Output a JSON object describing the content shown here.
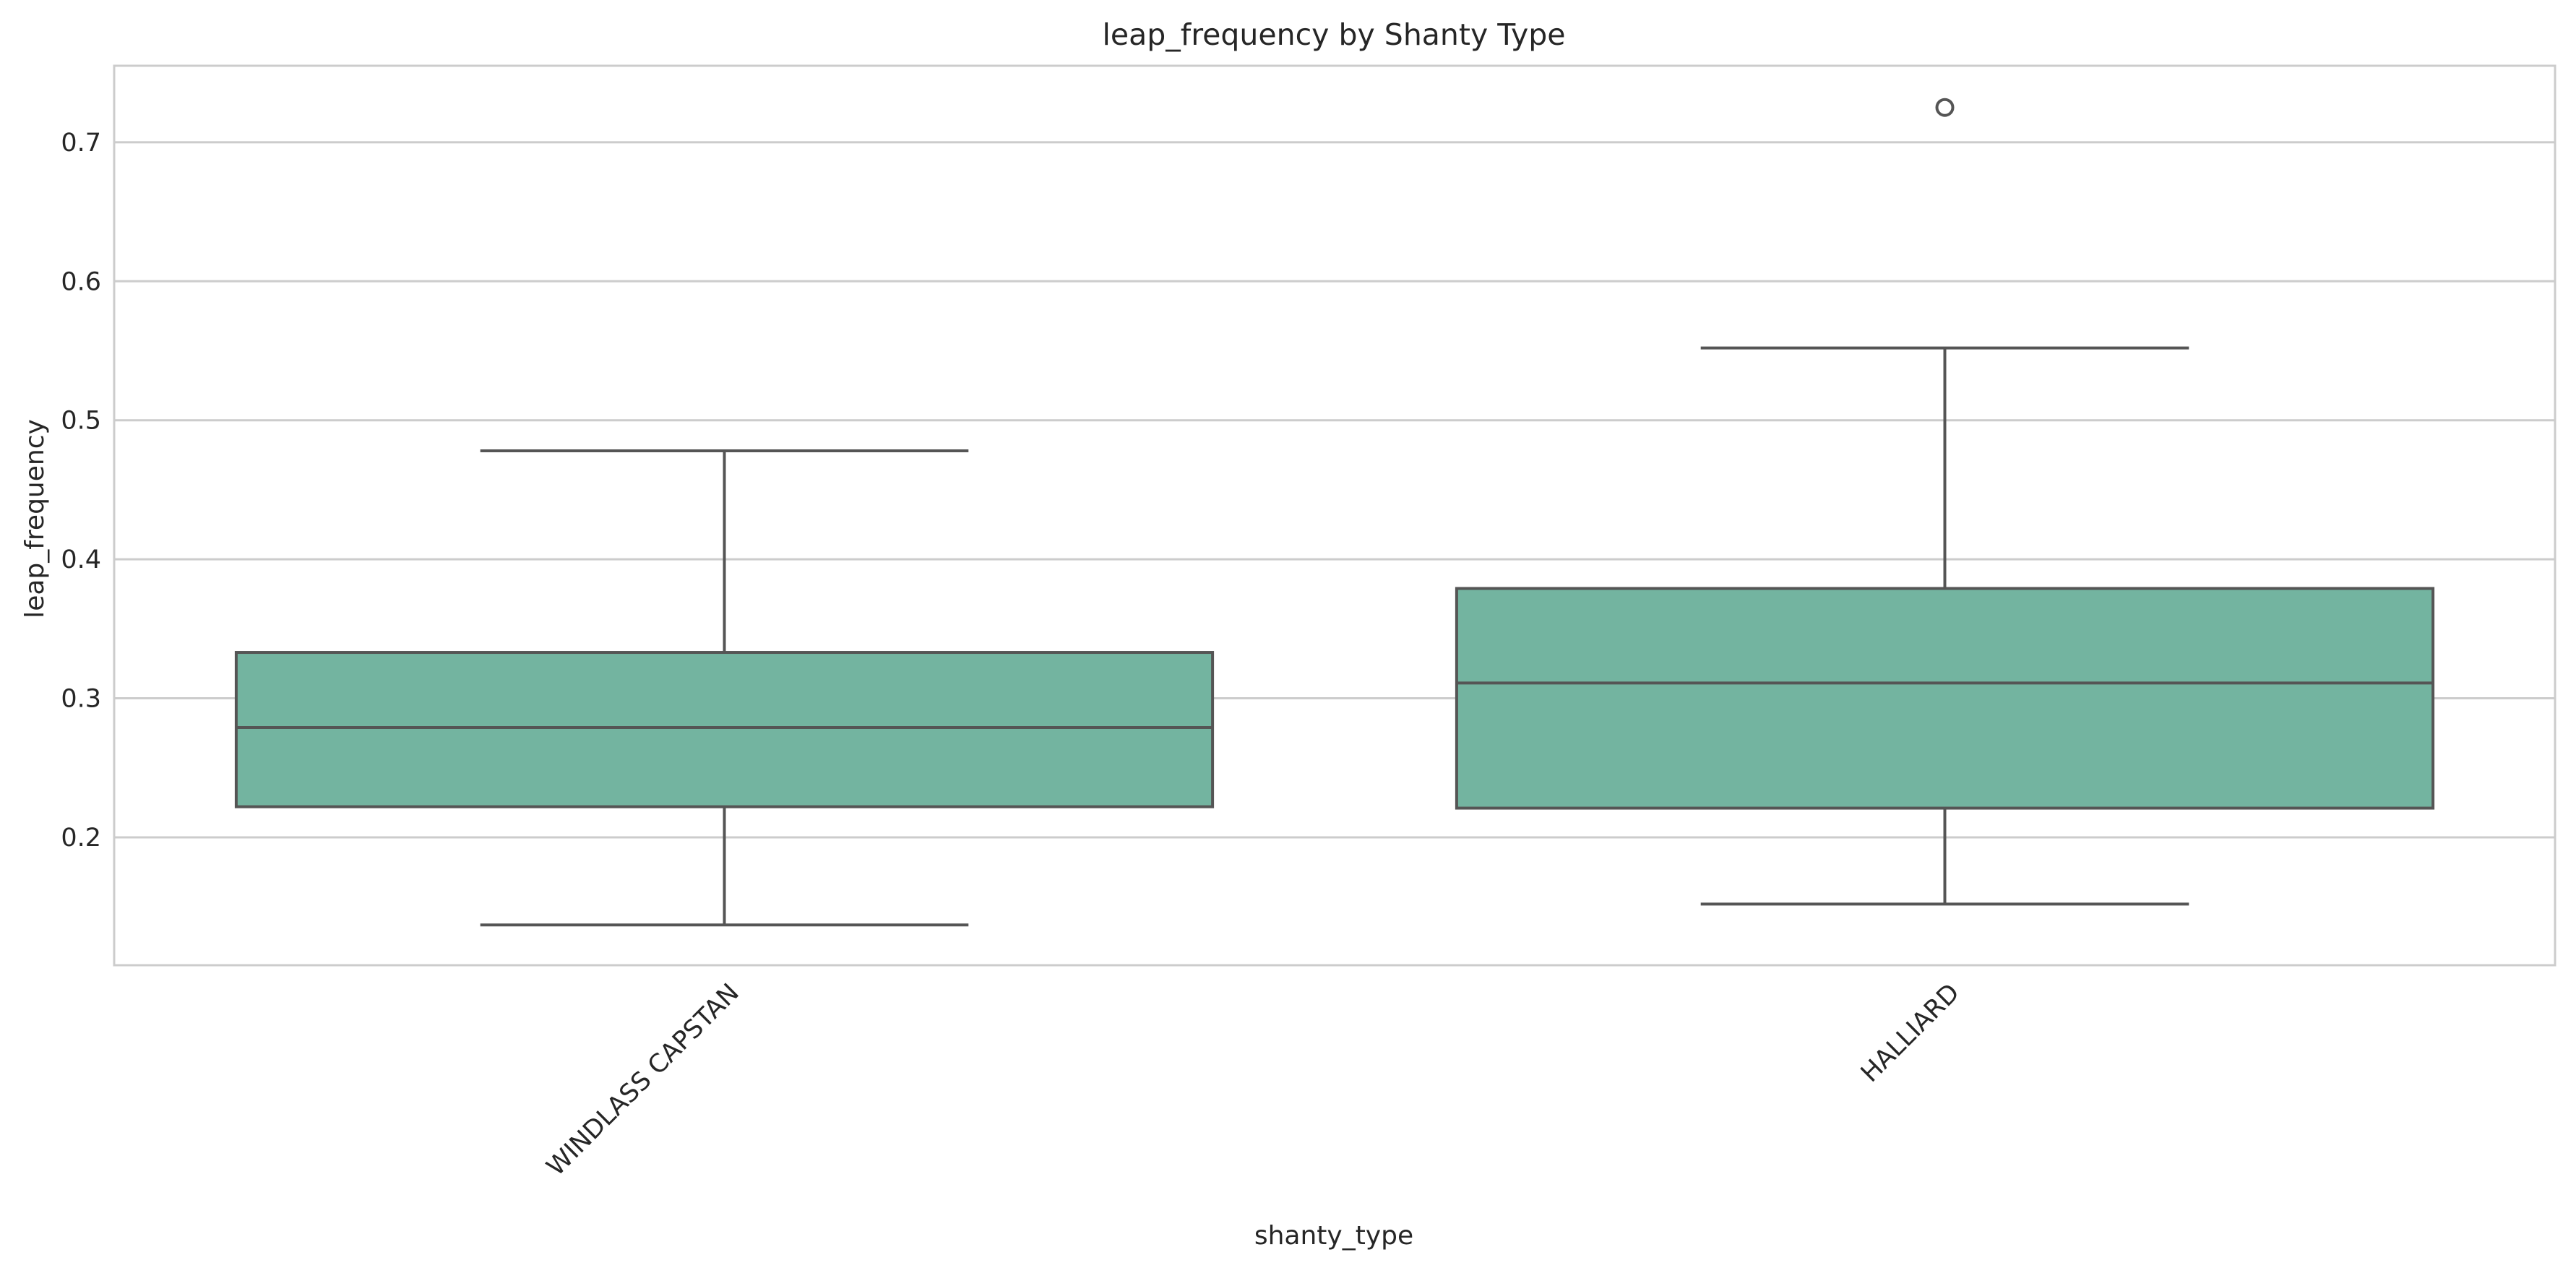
{
  "chart_data": {
    "type": "box",
    "title": "leap_frequency by Shanty Type",
    "xlabel": "shanty_type",
    "ylabel": "leap_frequency",
    "ylim": [
      0.108,
      0.755
    ],
    "yticks": [
      0.2,
      0.3,
      0.4,
      0.5,
      0.6,
      0.7
    ],
    "grid": true,
    "box_color": "#73b4a0",
    "categories": [
      "WINDLASS CAPSTAN",
      "HALLIARD"
    ],
    "boxes": [
      {
        "category": "WINDLASS CAPSTAN",
        "whisker_low": 0.137,
        "q1": 0.222,
        "median": 0.279,
        "q3": 0.333,
        "whisker_high": 0.478,
        "fliers": []
      },
      {
        "category": "HALLIARD",
        "whisker_low": 0.152,
        "q1": 0.221,
        "median": 0.311,
        "q3": 0.379,
        "whisker_high": 0.552,
        "fliers": [
          0.725
        ]
      }
    ]
  }
}
